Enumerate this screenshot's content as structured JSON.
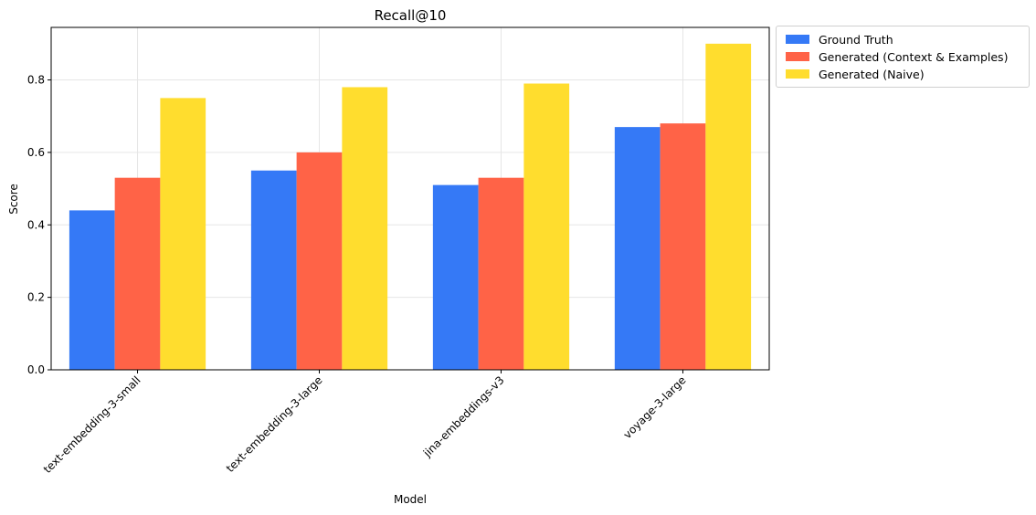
{
  "chart_data": {
    "type": "bar",
    "title": "Recall@10",
    "xlabel": "Model",
    "ylabel": "Score",
    "categories": [
      "text-embedding-3-small",
      "text-embedding-3-large",
      "jina-embeddings-v3",
      "voyage-3-large"
    ],
    "series": [
      {
        "name": "Ground Truth",
        "color": "#3579f6",
        "values": [
          0.44,
          0.55,
          0.51,
          0.67
        ]
      },
      {
        "name": "Generated (Context & Examples)",
        "color": "#ff6347",
        "values": [
          0.53,
          0.6,
          0.53,
          0.68
        ]
      },
      {
        "name": "Generated (Naive)",
        "color": "#ffdd2e",
        "values": [
          0.75,
          0.78,
          0.79,
          0.9
        ]
      }
    ],
    "ylim": [
      0,
      0.945
    ],
    "yticks": [
      "0.0",
      "0.2",
      "0.4",
      "0.6",
      "0.8"
    ],
    "grid": true,
    "legend_position": "outside-top-right"
  }
}
